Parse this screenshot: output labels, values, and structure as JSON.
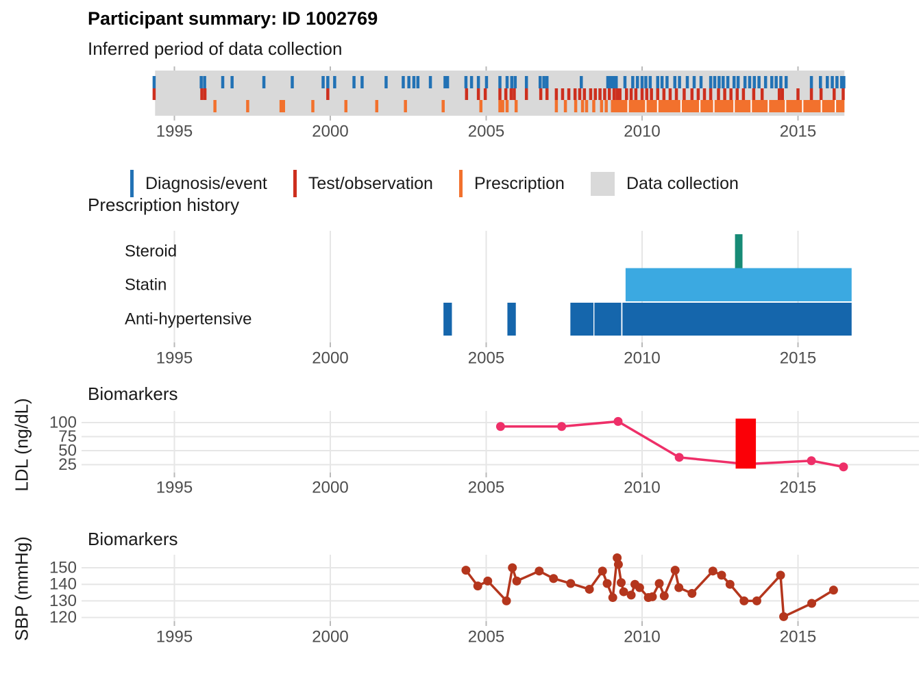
{
  "page": {
    "title": "Participant summary: ID 1002769"
  },
  "legend": {
    "items": [
      {
        "label": "Diagnosis/event",
        "color": "#2272b5",
        "marker": "tick"
      },
      {
        "label": "Test/observation",
        "color": "#cd2f1e",
        "marker": "tick"
      },
      {
        "label": "Prescription",
        "color": "#f2712d",
        "marker": "tick"
      },
      {
        "label": "Data collection",
        "color": "#d9d9d9",
        "marker": "square"
      }
    ]
  },
  "chart_data": [
    {
      "id": "data-collection-timeline",
      "type": "event-timeline",
      "title": "Inferred period of data collection",
      "x_ticks": [
        1995,
        2000,
        2005,
        2010,
        2015
      ],
      "x_range": [
        1993.5,
        2017
      ],
      "collection_period": [
        1994.38,
        2016.49
      ],
      "series": [
        {
          "name": "Diagnosis/event",
          "color": "#2272b5",
          "years": [
            1994.35,
            1995.86,
            1995.97,
            1996.55,
            1996.85,
            1997.87,
            1998.78,
            1999.77,
            1999.92,
            2000.14,
            2000.76,
            2001.02,
            2001.79,
            2002.34,
            2002.52,
            2002.68,
            2002.81,
            2003.21,
            2003.68,
            2003.76,
            2004.35,
            2004.53,
            2004.75,
            2005.01,
            2005.44,
            2005.67,
            2005.82,
            2005.93,
            2006.29,
            2006.73,
            2006.85,
            2006.95,
            2008.05,
            2008.9,
            2008.99,
            2009.08,
            2009.17,
            2009.45,
            2009.7,
            2009.85,
            2010.0,
            2010.12,
            2010.26,
            2010.5,
            2010.64,
            2010.8,
            2011.05,
            2011.2,
            2011.45,
            2011.67,
            2011.89,
            2012.2,
            2012.33,
            2012.47,
            2012.6,
            2012.75,
            2012.95,
            2013.08,
            2013.3,
            2013.45,
            2013.6,
            2013.75,
            2013.96,
            2014.16,
            2014.3,
            2014.45,
            2014.62,
            2015.43,
            2015.72,
            2015.94,
            2016.1,
            2016.25,
            2016.4,
            2016.47
          ]
        },
        {
          "name": "Test/observation",
          "color": "#cd2f1e",
          "years": [
            1994.35,
            1995.88,
            1995.98,
            1999.92,
            2004.37,
            2004.75,
            2004.97,
            2005.44,
            2005.63,
            2005.8,
            2005.9,
            2006.29,
            2006.75,
            2006.95,
            2007.25,
            2007.45,
            2007.65,
            2007.85,
            2008.0,
            2008.15,
            2008.35,
            2008.5,
            2008.65,
            2008.8,
            2008.95,
            2009.1,
            2009.2,
            2009.29,
            2009.5,
            2009.65,
            2009.8,
            2010.0,
            2010.15,
            2010.3,
            2010.5,
            2010.7,
            2010.9,
            2011.1,
            2011.35,
            2011.6,
            2011.8,
            2012.0,
            2012.2,
            2012.45,
            2012.65,
            2012.85,
            2013.05,
            2013.25,
            2013.58,
            2013.85,
            2014.4,
            2014.5,
            2015.0,
            2015.43,
            2015.74,
            2016.16,
            2016.45
          ]
        },
        {
          "name": "Prescription",
          "color": "#f2712d",
          "years": [
            1996.3,
            1997.35,
            1998.42,
            1998.5,
            1999.44,
            2000.5,
            2001.49,
            2002.41,
            2003.62,
            2004.83,
            2005.44,
            2005.53,
            2005.67,
            2005.96,
            2007.25,
            2007.54,
            2007.87,
            2008.09,
            2008.22,
            2008.45,
            2008.7,
            2008.85
          ],
          "continuous_band": [
            2009.0,
            2016.49
          ],
          "band_gaps": [
            2009.55,
            2010.12,
            2010.5,
            2011.25,
            2011.85,
            2012.3,
            2012.95,
            2013.5,
            2014.05,
            2014.6,
            2015.15,
            2015.75,
            2016.2
          ]
        }
      ]
    },
    {
      "id": "prescription-history",
      "type": "bar",
      "title": "Prescription history",
      "x_ticks": [
        1995,
        2000,
        2005,
        2010,
        2015
      ],
      "rows": [
        {
          "label": "Steroid",
          "color": "#178b76",
          "segments": [
            [
              2012.98,
              2013.22
            ]
          ]
        },
        {
          "label": "Statin",
          "color": "#3ba9e1",
          "segments": [
            [
              2009.47,
              2016.72
            ]
          ]
        },
        {
          "label": "Anti-hypertensive",
          "color": "#1566ac",
          "segments": [
            [
              2003.63,
              2003.9
            ],
            [
              2005.68,
              2005.95
            ],
            [
              2007.7,
              2008.44
            ],
            [
              2008.47,
              2009.33
            ],
            [
              2009.37,
              2016.72
            ]
          ]
        }
      ]
    },
    {
      "id": "ldl-biomarkers",
      "type": "line",
      "title": "Biomarkers",
      "ylabel": "LDL (ng/dL)",
      "y_ticks": [
        100,
        75,
        50,
        25
      ],
      "x_ticks": [
        1995,
        2000,
        2005,
        2010,
        2015
      ],
      "color": "#ee2f68",
      "points": [
        [
          2005.46,
          93
        ],
        [
          2007.42,
          93
        ],
        [
          2009.23,
          102
        ],
        [
          2011.19,
          38
        ],
        [
          2013.35,
          26
        ],
        [
          2015.43,
          32
        ],
        [
          2016.46,
          21
        ]
      ],
      "event_bar": {
        "color": "#fb0007",
        "x": [
          2013.0,
          2013.65
        ],
        "y": [
          18,
          107
        ]
      }
    },
    {
      "id": "sbp-biomarkers",
      "type": "line",
      "title": "Biomarkers",
      "ylabel": "SBP (mmHg)",
      "y_ticks": [
        150,
        140,
        130,
        120
      ],
      "x_ticks": [
        1995,
        2000,
        2005,
        2010,
        2015
      ],
      "color": "#b4361d",
      "points": [
        [
          2004.35,
          148.5
        ],
        [
          2004.73,
          139
        ],
        [
          2005.05,
          142
        ],
        [
          2005.65,
          130
        ],
        [
          2005.84,
          150
        ],
        [
          2005.98,
          142
        ],
        [
          2006.7,
          148
        ],
        [
          2007.16,
          143.5
        ],
        [
          2007.71,
          140.5
        ],
        [
          2008.31,
          137
        ],
        [
          2008.73,
          148
        ],
        [
          2008.88,
          140.5
        ],
        [
          2009.06,
          132
        ],
        [
          2009.2,
          156
        ],
        [
          2009.24,
          152
        ],
        [
          2009.33,
          141
        ],
        [
          2009.41,
          135.5
        ],
        [
          2009.65,
          133.5
        ],
        [
          2009.77,
          140
        ],
        [
          2009.92,
          138
        ],
        [
          2010.2,
          132
        ],
        [
          2010.33,
          132.5
        ],
        [
          2010.55,
          140.5
        ],
        [
          2010.71,
          133
        ],
        [
          2011.06,
          148.5
        ],
        [
          2011.18,
          138
        ],
        [
          2011.6,
          134.5
        ],
        [
          2012.27,
          148
        ],
        [
          2012.55,
          145.5
        ],
        [
          2012.82,
          140
        ],
        [
          2013.27,
          130
        ],
        [
          2013.68,
          130
        ],
        [
          2014.44,
          145.5
        ],
        [
          2014.54,
          120.5
        ],
        [
          2015.44,
          128.5
        ],
        [
          2016.14,
          136.5
        ]
      ]
    }
  ]
}
